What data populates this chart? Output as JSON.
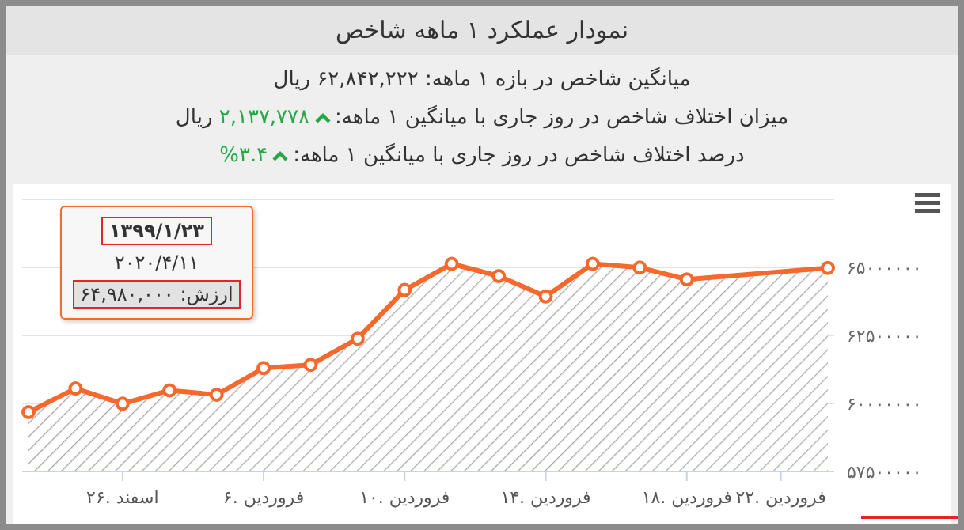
{
  "chart_data": {
    "type": "area",
    "title": "نمودار عملکرد ۱ ماهه شاخص",
    "subtitle": "میانگین شاخص در بازه ۱ ماهه: ۶۲,۸۴۲,۲۲۲ ریال",
    "annotations": [
      "میزان اختلاف شاخص در روز جاری با میانگین ۱ ماهه: ۲,۱۳۷,۷۷۸ ریال",
      "درصد اختلاف شاخص در روز جاری با میانگین ۱ ماهه: ۳.۴%",
      "۱۳۹۹/۱/۲۳",
      "۲۰۲۰/۴/۱۱",
      "ارزش: ۶۴,۹۸۰,۰۰۰"
    ],
    "categories": [
      null,
      null,
      "۲۶. اسفند",
      null,
      null,
      "۶. فروردین",
      null,
      null,
      "۱۰. فروردین",
      null,
      null,
      "۱۴. فروردین",
      null,
      null,
      "۱۸. فروردین",
      null,
      "۲۲. فروردین",
      null
    ],
    "series": [
      {
        "color": "#f7682c",
        "values": [
          59680000,
          60550000,
          59990000,
          60480000,
          60320000,
          61300000,
          61420000,
          62380000,
          64170000,
          65130000,
          64680000,
          63930000,
          65130000,
          64990000,
          64560000,
          null,
          null,
          64980000
        ]
      }
    ],
    "ylim": [
      57500000,
      67500000
    ],
    "yticks": [
      {
        "value": 57500000,
        "label": "۵۷۵۰۰۰۰۰"
      },
      {
        "value": 60000000,
        "label": "۶۰۰۰۰۰۰۰"
      },
      {
        "value": 62500000,
        "label": "۶۲۵۰۰۰۰۰"
      },
      {
        "value": 65000000,
        "label": "۶۵۰۰۰۰۰۰"
      },
      {
        "value": 67500000,
        "label": null
      }
    ],
    "grid": "y",
    "marker": "circle",
    "line_style": "solid"
  }
}
